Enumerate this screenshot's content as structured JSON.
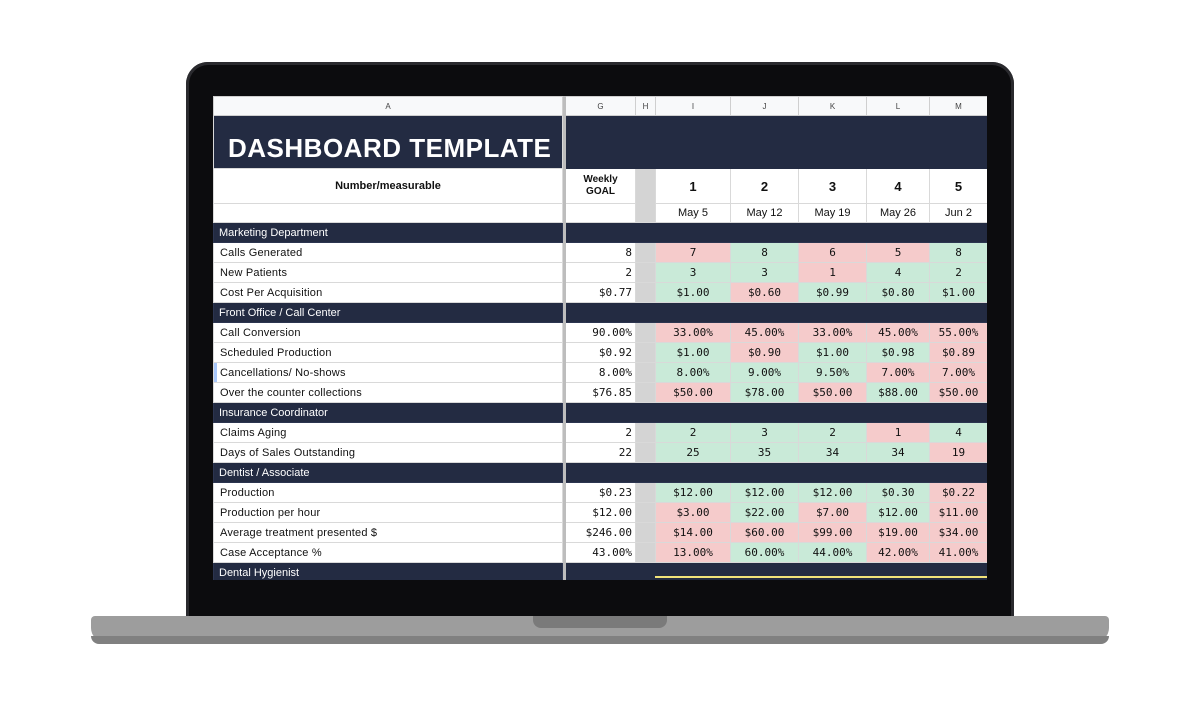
{
  "sheet": {
    "column_letters": [
      "A",
      "G",
      "H",
      "I",
      "J",
      "K",
      "L",
      "M"
    ],
    "title": "DASHBOARD TEMPLATE",
    "header": {
      "measurable_label": "Number/measurable",
      "goal_label_line1": "Weekly",
      "goal_label_line2": "GOAL",
      "weeks": [
        "1",
        "2",
        "3",
        "4",
        "5"
      ],
      "dates": [
        "May 5",
        "May 12",
        "May 19",
        "May 26",
        "Jun 2"
      ]
    },
    "sections": [
      {
        "name": "Marketing Department",
        "rows": [
          {
            "label": "Calls Generated",
            "goal": "8",
            "values": [
              "7",
              "8",
              "6",
              "5",
              "8"
            ],
            "status": [
              "red",
              "green",
              "red",
              "red",
              "green"
            ]
          },
          {
            "label": "New Patients",
            "goal": "2",
            "values": [
              "3",
              "3",
              "1",
              "4",
              "2"
            ],
            "status": [
              "green",
              "green",
              "red",
              "green",
              "green"
            ]
          },
          {
            "label": "Cost Per Acquisition",
            "goal": "$0.77",
            "values": [
              "$1.00",
              "$0.60",
              "$0.99",
              "$0.80",
              "$1.00"
            ],
            "status": [
              "green",
              "red",
              "green",
              "green",
              "green"
            ]
          }
        ]
      },
      {
        "name": "Front Office / Call Center",
        "rows": [
          {
            "label": "Call Conversion",
            "goal": "90.00%",
            "values": [
              "33.00%",
              "45.00%",
              "33.00%",
              "45.00%",
              "55.00%"
            ],
            "status": [
              "red",
              "red",
              "red",
              "red",
              "red"
            ]
          },
          {
            "label": "Scheduled Production",
            "goal": "$0.92",
            "values": [
              "$1.00",
              "$0.90",
              "$1.00",
              "$0.98",
              "$0.89"
            ],
            "status": [
              "green",
              "red",
              "green",
              "green",
              "red"
            ]
          },
          {
            "label": "Cancellations/ No-shows",
            "goal": "8.00%",
            "values": [
              "8.00%",
              "9.00%",
              "9.50%",
              "7.00%",
              "7.00%"
            ],
            "status": [
              "green",
              "green",
              "green",
              "red",
              "red"
            ]
          },
          {
            "label": "Over the counter collections",
            "goal": "$76.85",
            "values": [
              "$50.00",
              "$78.00",
              "$50.00",
              "$88.00",
              "$50.00"
            ],
            "status": [
              "red",
              "green",
              "red",
              "green",
              "red"
            ]
          }
        ]
      },
      {
        "name": "Insurance Coordinator",
        "rows": [
          {
            "label": "Claims Aging",
            "goal": "2",
            "values": [
              "2",
              "3",
              "2",
              "1",
              "4"
            ],
            "status": [
              "green",
              "green",
              "green",
              "red",
              "green"
            ]
          },
          {
            "label": "Days of Sales Outstanding",
            "goal": "22",
            "values": [
              "25",
              "35",
              "34",
              "34",
              "19"
            ],
            "status": [
              "green",
              "green",
              "green",
              "green",
              "red"
            ]
          }
        ]
      },
      {
        "name": "Dentist / Associate",
        "rows": [
          {
            "label": "Production",
            "goal": "$0.23",
            "values": [
              "$12.00",
              "$12.00",
              "$12.00",
              "$0.30",
              "$0.22"
            ],
            "status": [
              "green",
              "green",
              "green",
              "green",
              "red"
            ]
          },
          {
            "label": "Production per hour",
            "goal": "$12.00",
            "values": [
              "$3.00",
              "$22.00",
              "$7.00",
              "$12.00",
              "$11.00"
            ],
            "status": [
              "red",
              "green",
              "red",
              "green",
              "red"
            ]
          },
          {
            "label": "Average treatment presented $",
            "goal": "$246.00",
            "values": [
              "$14.00",
              "$60.00",
              "$99.00",
              "$19.00",
              "$34.00"
            ],
            "status": [
              "red",
              "red",
              "red",
              "red",
              "red"
            ]
          },
          {
            "label": "Case Acceptance %",
            "goal": "43.00%",
            "values": [
              "13.00%",
              "60.00%",
              "44.00%",
              "42.00%",
              "41.00%"
            ],
            "status": [
              "red",
              "green",
              "green",
              "red",
              "red"
            ]
          }
        ]
      },
      {
        "name": "Dental Hygienist",
        "rows": []
      }
    ],
    "status_colors": {
      "green": "#c9ead8",
      "red": "#f5cbcb",
      "navy": "#232b42"
    }
  }
}
